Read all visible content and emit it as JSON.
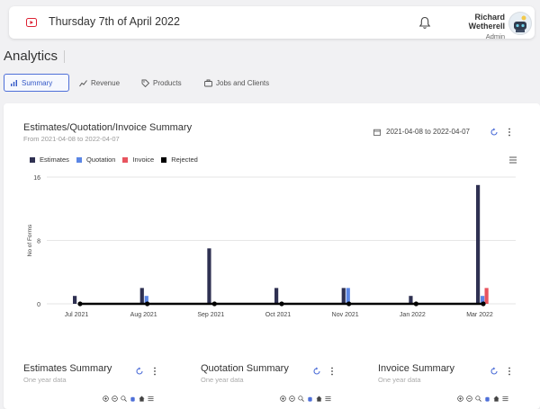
{
  "header": {
    "date": "Thursday 7th of April 2022",
    "user_name": "Richard Wetherell",
    "user_role": "Admin"
  },
  "page_title": "Analytics",
  "tabs": [
    {
      "label": "Summary",
      "icon": "bar-chart-icon",
      "active": true
    },
    {
      "label": "Revenue",
      "icon": "line-chart-icon",
      "active": false
    },
    {
      "label": "Products",
      "icon": "tag-icon",
      "active": false
    },
    {
      "label": "Jobs and Clients",
      "icon": "briefcase-icon",
      "active": false
    }
  ],
  "summary_card": {
    "title": "Estimates/Quotation/Invoice Summary",
    "subtitle": "From 2021-04-08 to 2022-04-07",
    "date_range": "2021-04-08 to 2022-04-07"
  },
  "chart_data": {
    "type": "bar",
    "ylabel": "No of Forms",
    "ylim": [
      0,
      16
    ],
    "yticks": [
      "16",
      "8",
      "0"
    ],
    "xtick_labels": [
      "Jul 2021",
      "Aug 2021",
      "Sep 2021",
      "Oct 2021",
      "Nov 2021",
      "Jan 2022",
      "Mar 2022"
    ],
    "series": [
      {
        "name": "Estimates",
        "color": "#2f3152",
        "values": [
          1,
          2,
          7,
          2,
          2,
          1,
          15
        ]
      },
      {
        "name": "Quotation",
        "color": "#5b86e5",
        "values": [
          0,
          1,
          0,
          0,
          2,
          0,
          1
        ]
      },
      {
        "name": "Invoice",
        "color": "#e8545f",
        "values": [
          0,
          0,
          0,
          0,
          0,
          0,
          2
        ]
      },
      {
        "name": "Rejected",
        "color": "#000000",
        "values": [
          0,
          0,
          0,
          0,
          0,
          0,
          0
        ]
      }
    ],
    "legend": "top-left",
    "grid": true
  },
  "mini_cards": [
    {
      "title": "Estimates Summary",
      "subtitle": "One year data"
    },
    {
      "title": "Quotation Summary",
      "subtitle": "One year data"
    },
    {
      "title": "Invoice Summary",
      "subtitle": "One year data"
    }
  ]
}
